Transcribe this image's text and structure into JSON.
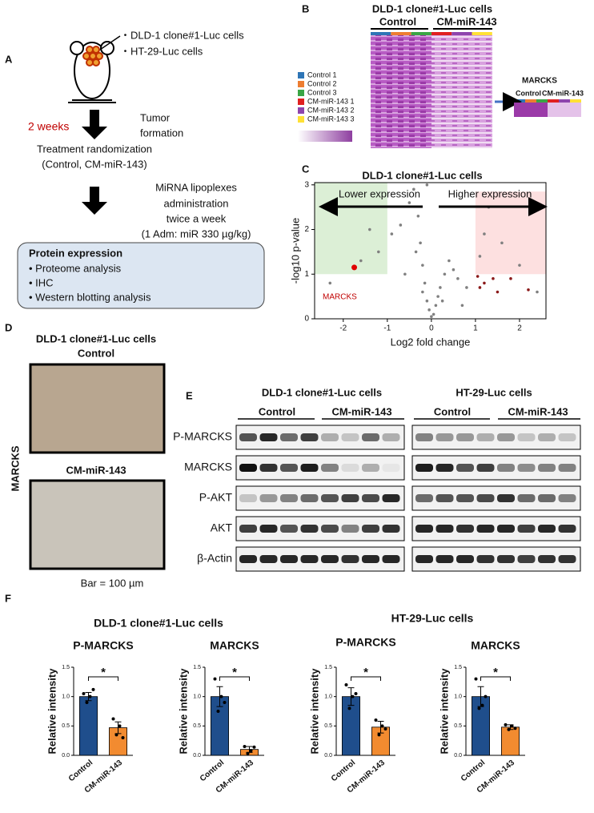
{
  "panels": {
    "a": {
      "label": "A",
      "cells": [
        "・DLD-1 clone#1-Luc cells",
        "・HT-29-Luc cells"
      ],
      "time": "2 weeks",
      "tumor": [
        "Tumor",
        "formation"
      ],
      "randomization": [
        "Treatment randomization",
        "(Control, CM-miR-143)"
      ],
      "admin": [
        "MiRNA lipoplexes",
        "administration",
        "twice a week",
        "(1 Adm: miR 330 µg/kg)"
      ],
      "box_title": "Protein expression",
      "box_items": [
        "•  Proteome analysis",
        "•  IHC",
        "•  Western blotting analysis"
      ]
    },
    "b": {
      "label": "B",
      "title": "DLD-1 clone#1-Luc cells",
      "groups": [
        "Control",
        "CM-miR-143"
      ],
      "legend": [
        {
          "name": "Control 1",
          "color": "#2e75b6"
        },
        {
          "name": "Control 2",
          "color": "#ed7d31"
        },
        {
          "name": "Control 3",
          "color": "#3aa545"
        },
        {
          "name": "CM-miR-143 1",
          "color": "#e02020"
        },
        {
          "name": "CM-miR-143 2",
          "color": "#8e44ad"
        },
        {
          "name": "CM-miR-143 3",
          "color": "#ffe135"
        }
      ],
      "inset_title": "MARCKS",
      "inset_groups": [
        "Control",
        "CM-miR-143"
      ]
    },
    "c": {
      "label": "C"
    },
    "d": {
      "label": "D",
      "title": [
        "DLD-1 clone#1-Luc cells",
        "Control"
      ],
      "treated": "CM-miR-143",
      "side": "MARCKS",
      "scale": "Bar = 100 µm"
    },
    "e": {
      "label": "E",
      "lines": [
        "DLD-1 clone#1-Luc cells",
        "HT-29-Luc cells"
      ],
      "groups": [
        "Control",
        "CM-miR-143",
        "Control",
        "CM-miR-143"
      ],
      "rows": [
        "P-MARCKS",
        "MARCKS",
        "P-AKT",
        "AKT",
        "β-Actin"
      ]
    },
    "f": {
      "label": "F",
      "lines": [
        "DLD-1 clone#1-Luc cells",
        "HT-29-Luc cells"
      ]
    }
  },
  "chart_data": [
    {
      "type": "scatter",
      "title": "DLD-1 clone#1-Luc cells",
      "xlabel": "Log2 fold change",
      "ylabel": "-log10 p-value",
      "xlim": [
        -2.65,
        2.6
      ],
      "ylim": [
        0,
        3.05
      ],
      "xticks": [
        -2,
        -1,
        0,
        1,
        2
      ],
      "yticks": [
        0,
        1,
        2,
        3
      ],
      "shaded_regions": [
        {
          "color": "#dcefd6",
          "xrange": [
            -2.65,
            -1
          ],
          "yrange": [
            1,
            3.05
          ]
        },
        {
          "color": "#fde0e0",
          "xrange": [
            1,
            2.6
          ],
          "yrange": [
            1,
            2.85
          ]
        }
      ],
      "annotations": [
        "Lower expression",
        "Higher expression",
        "MARCKS"
      ],
      "series": [
        {
          "color": "#808080",
          "x": [
            -2.3,
            -1.6,
            -1.2,
            -0.9,
            -0.7,
            -0.5,
            -0.4,
            -0.3,
            -0.25,
            -0.2,
            -0.15,
            -0.1,
            -0.05,
            0.05,
            0.1,
            0.15,
            0.2,
            0.3,
            0.4,
            0.5,
            0.6,
            0.8,
            1.1,
            1.3,
            1.6,
            2.0,
            2.4,
            -0.35,
            -0.6,
            -0.2,
            0.25,
            0.7,
            -1.4,
            1.2,
            -0.1,
            0.0
          ],
          "values": [
            0.8,
            1.3,
            1.5,
            1.9,
            2.1,
            2.6,
            2.9,
            2.3,
            1.7,
            1.2,
            0.8,
            0.4,
            0.2,
            0.1,
            0.3,
            0.5,
            0.7,
            1.0,
            1.3,
            1.1,
            0.9,
            0.7,
            1.4,
            2.5,
            1.7,
            1.2,
            0.6,
            1.5,
            1.0,
            0.6,
            0.4,
            0.3,
            2.0,
            1.9,
            3.0,
            0.05
          ]
        },
        {
          "color": "#8b1a1a",
          "x": [
            1.05,
            1.2,
            1.5,
            1.8,
            2.2,
            1.1,
            1.4
          ],
          "values": [
            0.95,
            0.8,
            0.6,
            0.9,
            0.65,
            0.7,
            0.9
          ]
        },
        {
          "color": "#e00000",
          "x": [
            -1.75
          ],
          "values": [
            1.15
          ]
        }
      ]
    },
    {
      "type": "bar",
      "title": "P-MARCKS",
      "ylabel": "Relative intensity",
      "categories": [
        "Control",
        "CM-miR-143"
      ],
      "values": [
        1.0,
        0.47
      ],
      "errors": [
        0.07,
        0.1
      ],
      "points": [
        [
          1.05,
          0.9,
          1.0,
          1.12
        ],
        [
          0.62,
          0.35,
          0.5,
          0.3
        ]
      ],
      "colors": [
        "#1f4e8c",
        "#f28b30"
      ],
      "annotation": "*",
      "ylim": [
        0,
        1.5
      ],
      "yticks": [
        {
          "value": 0,
          "label": "0.0"
        },
        {
          "value": 0.5,
          "label": "0.5"
        },
        {
          "value": 1,
          "label": "1.0"
        },
        1.5
      ]
    },
    {
      "type": "bar",
      "title": "MARCKS",
      "ylabel": "Relative intensity",
      "categories": [
        "Control",
        "CM-miR-143"
      ],
      "values": [
        1.0,
        0.1
      ],
      "errors": [
        0.17,
        0.05
      ],
      "points": [
        [
          1.3,
          0.75,
          1.0,
          0.9
        ],
        [
          0.15,
          0.03,
          0.08,
          0.14
        ]
      ],
      "colors": [
        "#1f4e8c",
        "#f28b30"
      ],
      "annotation": "*",
      "ylim": [
        0,
        1.5
      ],
      "yticks": [
        {
          "value": 0,
          "label": "0.0"
        },
        {
          "value": 0.5,
          "label": "0.5"
        },
        {
          "value": 1,
          "label": "1.0"
        },
        1.5
      ]
    },
    {
      "type": "bar",
      "title": "P-MARCKS",
      "ylabel": "Relative intensity",
      "categories": [
        "Control",
        "CM-miR-143"
      ],
      "values": [
        1.0,
        0.48
      ],
      "errors": [
        0.15,
        0.1
      ],
      "points": [
        [
          1.2,
          0.8,
          1.0,
          1.05
        ],
        [
          0.6,
          0.35,
          0.5,
          0.45
        ]
      ],
      "colors": [
        "#1f4e8c",
        "#f28b30"
      ],
      "annotation": "*",
      "ylim": [
        0,
        1.5
      ],
      "yticks": [
        {
          "value": 0,
          "label": "0.0"
        },
        {
          "value": 0.5,
          "label": "0.5"
        },
        {
          "value": 1,
          "label": "1.0"
        },
        1.5
      ]
    },
    {
      "type": "bar",
      "title": "MARCKS",
      "ylabel": "Relative intensity",
      "categories": [
        "Control",
        "CM-miR-143"
      ],
      "values": [
        1.0,
        0.48
      ],
      "errors": [
        0.17,
        0.04
      ],
      "points": [
        [
          1.3,
          0.8,
          0.85,
          1.0
        ],
        [
          0.52,
          0.44,
          0.5,
          0.46
        ]
      ],
      "colors": [
        "#1f4e8c",
        "#f28b30"
      ],
      "annotation": "*",
      "ylim": [
        0,
        1.5
      ],
      "yticks": [
        {
          "value": 0,
          "label": "0.0"
        },
        {
          "value": 0.5,
          "label": "0.5"
        },
        {
          "value": 1,
          "label": "1.0"
        },
        1.5
      ]
    }
  ]
}
